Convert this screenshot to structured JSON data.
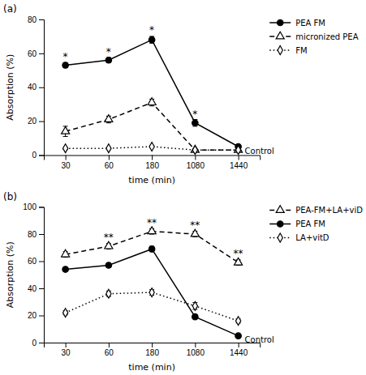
{
  "chart_data": [
    {
      "type": "line",
      "title": "(a)",
      "x_label": "time (min)",
      "y_label": "Absorption (%)",
      "categories": [
        "30",
        "60",
        "180",
        "1080",
        "1440"
      ],
      "series": [
        {
          "name": "PEA FM",
          "color": "#000000",
          "marker": "circle",
          "line_style": "solid",
          "values": [
            53,
            56,
            68,
            19,
            5
          ],
          "errors": [
            1.5,
            1.5,
            2.0,
            2.0,
            1.0
          ]
        },
        {
          "name": "micronized PEA",
          "color": "#000000",
          "marker": "triangle",
          "line_style": "dashed",
          "values": [
            14,
            21,
            31,
            3,
            3
          ],
          "errors": [
            3.0,
            2.0,
            2.0,
            0.5,
            0.5
          ]
        },
        {
          "name": "FM",
          "color": "#000000",
          "marker": "diamond",
          "line_style": "dotted",
          "values": [
            4,
            4,
            5,
            3,
            3
          ],
          "errors": [
            0.5,
            0.5,
            0.5,
            0.5,
            0.5
          ]
        }
      ],
      "ylim": [
        0,
        80
      ],
      "yticks": [
        0,
        20,
        40,
        60,
        80
      ],
      "grid": false,
      "legend": "right",
      "annotations": [
        {
          "text": "*",
          "x": "30",
          "y": 56
        },
        {
          "text": "*",
          "x": "60",
          "y": 59
        },
        {
          "text": "*",
          "x": "180",
          "y": 72
        },
        {
          "text": "*",
          "x": "1080",
          "y": 22
        },
        {
          "text": "Control",
          "y": 2
        }
      ]
    },
    {
      "type": "line",
      "title": "(b)",
      "x_label": "time (min)",
      "y_label": "Absorption (%)",
      "categories": [
        "30",
        "60",
        "180",
        "1080",
        "1440"
      ],
      "series": [
        {
          "name": "PEA-FM+LA+viD",
          "color": "#000000",
          "marker": "triangle",
          "line_style": "dashed",
          "values": [
            65,
            71,
            82,
            80,
            59
          ],
          "errors": [
            2.0,
            2.0,
            2.0,
            2.0,
            2.0
          ]
        },
        {
          "name": "PEA FM",
          "color": "#000000",
          "marker": "circle",
          "line_style": "solid",
          "values": [
            54,
            57,
            69,
            19,
            5
          ],
          "errors": [
            1.5,
            1.5,
            2.0,
            1.5,
            1.0
          ]
        },
        {
          "name": "LA+vitD",
          "color": "#000000",
          "marker": "diamond",
          "line_style": "dotted",
          "values": [
            22,
            36,
            37,
            27,
            16
          ],
          "errors": [
            1.5,
            2.0,
            2.0,
            2.5,
            1.5
          ]
        }
      ],
      "ylim": [
        0,
        100
      ],
      "yticks": [
        0,
        20,
        40,
        60,
        80,
        100
      ],
      "grid": false,
      "legend": "right",
      "annotations": [
        {
          "text": "**",
          "x": "60",
          "y": 75
        },
        {
          "text": "**",
          "x": "180",
          "y": 86
        },
        {
          "text": "**",
          "x": "1080",
          "y": 84
        },
        {
          "text": "**",
          "x": "1440",
          "y": 63
        },
        {
          "text": "Control",
          "y": 2
        }
      ]
    }
  ]
}
